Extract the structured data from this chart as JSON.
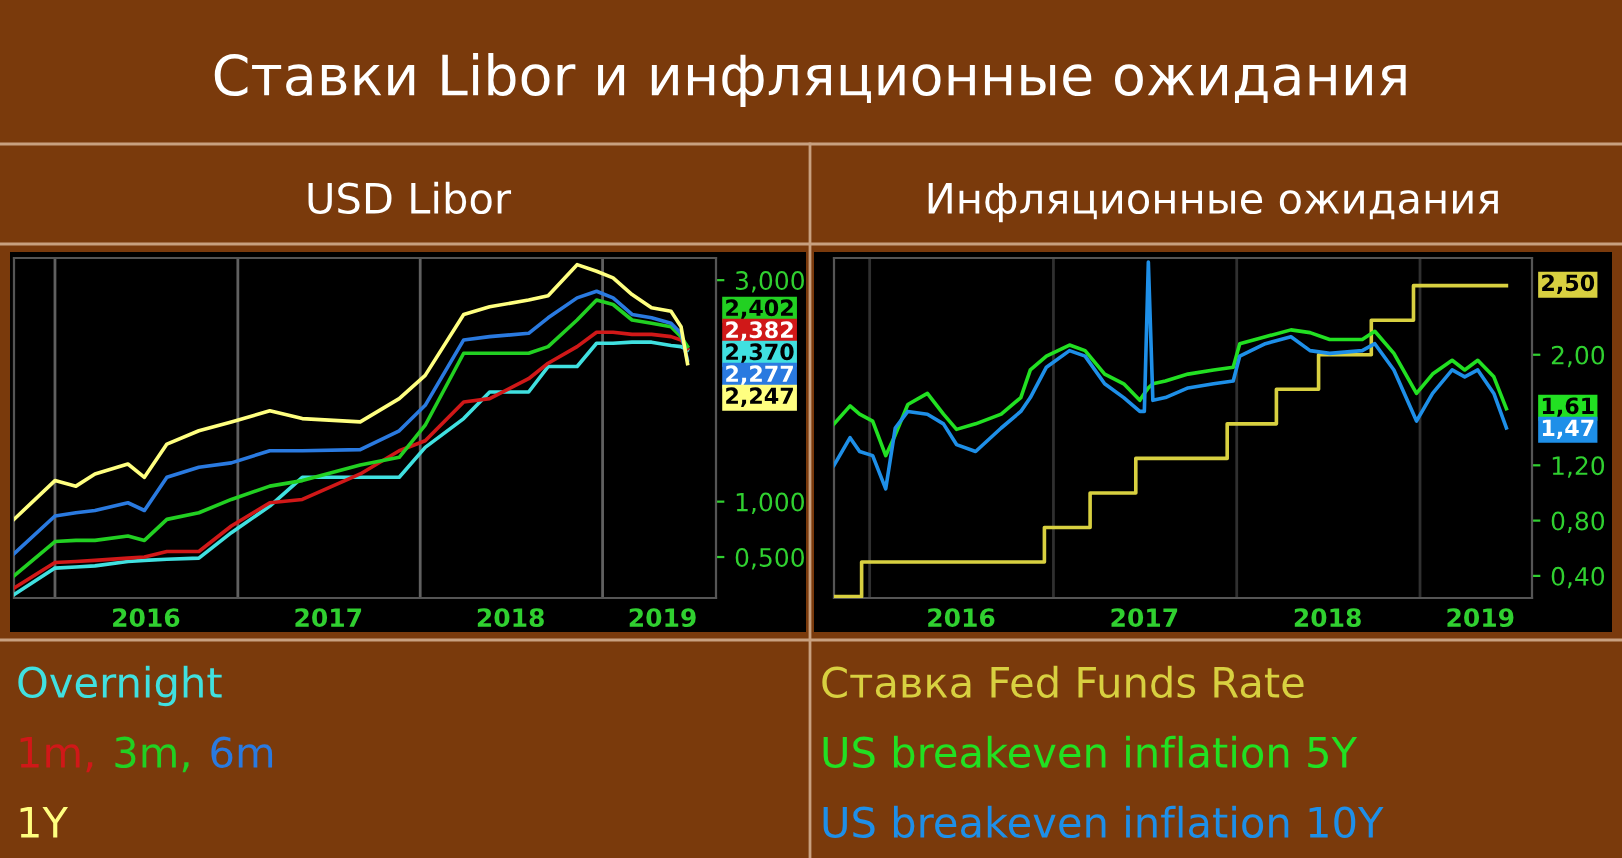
{
  "chart_data": [
    {
      "type": "line",
      "title": "Ставки Libor и инфляционные ожидания",
      "subtitle": "USD Libor",
      "x": [
        "2015-10-11",
        "2016-01-01",
        "2016-02-12",
        "2016-03-21",
        "2016-05-26",
        "2016-06-28",
        "2016-08-12",
        "2016-10-15",
        "2016-12-19",
        "2017-03-06",
        "2017-05-10",
        "2017-09-03",
        "2017-11-20",
        "2018-01-11",
        "2018-03-29",
        "2018-05-20",
        "2018-08-06",
        "2018-09-14",
        "2018-11-11",
        "2018-12-20",
        "2019-01-22",
        "2019-03-01",
        "2019-04-09",
        "2019-05-18",
        "2019-06-07",
        "2019-06-20"
      ],
      "series": [
        {
          "name": "Overnight",
          "color": "#40e0e0",
          "values": [
            0.16,
            0.4,
            0.41,
            0.42,
            0.46,
            0.47,
            0.48,
            0.49,
            0.72,
            0.96,
            1.22,
            1.22,
            1.22,
            1.49,
            1.75,
            1.99,
            1.99,
            2.22,
            2.22,
            2.43,
            2.43,
            2.44,
            2.44,
            2.41,
            2.4,
            2.37
          ],
          "value_labels": [
            null,
            null,
            null,
            null,
            null,
            null,
            null,
            null,
            null,
            null,
            null,
            null,
            null,
            null,
            null,
            null,
            null,
            null,
            null,
            null,
            null,
            null,
            null,
            null,
            null,
            "2,370"
          ]
        },
        {
          "name": "1m,",
          "color": "#d01818",
          "values": [
            0.22,
            0.45,
            0.46,
            0.47,
            0.49,
            0.5,
            0.55,
            0.55,
            0.78,
            0.99,
            1.02,
            1.25,
            1.46,
            1.55,
            1.9,
            1.93,
            2.11,
            2.25,
            2.4,
            2.53,
            2.53,
            2.51,
            2.51,
            2.49,
            2.46,
            2.382
          ],
          "value_labels": [
            null,
            null,
            null,
            null,
            null,
            null,
            null,
            null,
            null,
            null,
            null,
            null,
            null,
            null,
            null,
            null,
            null,
            null,
            null,
            null,
            null,
            null,
            null,
            null,
            null,
            "2,382"
          ]
        },
        {
          "name": "3m,",
          "color": "#22d022",
          "values": [
            0.33,
            0.64,
            0.65,
            0.65,
            0.69,
            0.65,
            0.84,
            0.9,
            1.02,
            1.14,
            1.19,
            1.33,
            1.4,
            1.69,
            2.34,
            2.34,
            2.34,
            2.4,
            2.64,
            2.82,
            2.78,
            2.64,
            2.61,
            2.58,
            2.49,
            2.402
          ],
          "value_labels": [
            null,
            null,
            null,
            null,
            null,
            null,
            null,
            null,
            null,
            null,
            null,
            null,
            null,
            null,
            null,
            null,
            null,
            null,
            null,
            null,
            null,
            null,
            null,
            null,
            null,
            "2,402"
          ]
        },
        {
          "name": "6m",
          "color": "#2a7ae0",
          "values": [
            0.53,
            0.87,
            0.9,
            0.92,
            0.99,
            0.92,
            1.22,
            1.31,
            1.35,
            1.46,
            1.46,
            1.47,
            1.64,
            1.87,
            2.46,
            2.49,
            2.52,
            2.66,
            2.84,
            2.9,
            2.84,
            2.69,
            2.66,
            2.61,
            2.52,
            2.277
          ],
          "value_labels": [
            null,
            null,
            null,
            null,
            null,
            null,
            null,
            null,
            null,
            null,
            null,
            null,
            null,
            null,
            null,
            null,
            null,
            null,
            null,
            null,
            null,
            null,
            null,
            null,
            null,
            "2,277"
          ]
        },
        {
          "name": "1Y",
          "color": "#ffff80",
          "values": [
            0.84,
            1.19,
            1.14,
            1.25,
            1.34,
            1.22,
            1.52,
            1.64,
            1.72,
            1.82,
            1.75,
            1.72,
            1.93,
            2.14,
            2.69,
            2.76,
            2.82,
            2.86,
            3.14,
            3.08,
            3.02,
            2.87,
            2.75,
            2.72,
            2.58,
            2.247
          ],
          "value_labels": [
            null,
            null,
            null,
            null,
            null,
            null,
            null,
            null,
            null,
            null,
            null,
            null,
            null,
            null,
            null,
            null,
            null,
            null,
            null,
            null,
            null,
            null,
            null,
            null,
            null,
            "2,247"
          ]
        }
      ],
      "xlim": [
        "2015-10-11",
        "2019-08-16"
      ],
      "xticks": [
        {
          "value": "2016-07-01",
          "label": "2016"
        },
        {
          "value": "2017-07-01",
          "label": "2017"
        },
        {
          "value": "2018-07-01",
          "label": "2018"
        },
        {
          "value": "2019-05-01",
          "label": "2019"
        }
      ],
      "ylim": [
        0.13,
        3.2
      ],
      "yticks": [
        {
          "value": 0.5,
          "label": "0,500"
        },
        {
          "value": 1.0,
          "label": "1,000"
        },
        {
          "value": 3.0,
          "label": "3,000"
        }
      ],
      "ref_lines": [
        {
          "axis": "x",
          "value": "2016-01-01",
          "color": "#606060"
        },
        {
          "axis": "x",
          "value": "2017-01-01",
          "color": "#606060"
        },
        {
          "axis": "x",
          "value": "2018-01-01",
          "color": "#606060"
        },
        {
          "axis": "x",
          "value": "2019-01-01",
          "color": "#606060"
        }
      ],
      "legend": "bottom"
    },
    {
      "type": "line",
      "subtitle": "Инфляционные ожидания",
      "x": [
        "2015-10-22",
        "2015-11-23",
        "2015-12-12",
        "2016-01-07",
        "2016-02-02",
        "2016-02-21",
        "2016-03-17",
        "2016-04-25",
        "2016-05-27",
        "2016-06-22",
        "2016-07-30",
        "2016-09-19",
        "2016-10-28",
        "2016-11-16",
        "2016-12-18",
        "2017-02-02",
        "2017-03-05",
        "2017-04-13",
        "2017-05-21",
        "2017-06-22",
        "2017-07-01",
        "2017-07-09",
        "2017-07-18",
        "2017-08-12",
        "2017-09-26",
        "2017-11-16",
        "2017-12-25",
        "2018-01-07",
        "2018-02-27",
        "2018-04-19",
        "2018-05-27",
        "2018-07-05",
        "2018-09-08",
        "2018-10-03",
        "2018-11-10",
        "2018-12-25",
        "2019-01-26",
        "2019-03-06",
        "2019-03-31",
        "2019-04-26",
        "2019-05-28",
        "2019-06-22"
      ],
      "series": [
        {
          "name": "Ставка Fed Funds Rate",
          "type": "step",
          "color": "#d8d040",
          "x": [
            "2015-10-22",
            "2015-12-16",
            "2016-12-14",
            "2017-03-15",
            "2017-06-14",
            "2017-12-13",
            "2018-03-21",
            "2018-06-13",
            "2018-09-26",
            "2018-12-19",
            "2019-06-22"
          ],
          "values": [
            0.25,
            0.5,
            0.75,
            1.0,
            1.25,
            1.5,
            1.75,
            2.0,
            2.25,
            2.5,
            2.5
          ],
          "value_labels": [
            null,
            null,
            null,
            null,
            null,
            null,
            null,
            null,
            null,
            null,
            "2,50"
          ]
        },
        {
          "name": "US breakeven inflation 5Y",
          "color": "#22e022",
          "values": [
            1.5,
            1.63,
            1.57,
            1.52,
            1.27,
            1.42,
            1.64,
            1.72,
            1.57,
            1.46,
            1.5,
            1.57,
            1.69,
            1.89,
            1.99,
            2.07,
            2.03,
            1.86,
            1.79,
            1.67,
            1.72,
            1.76,
            1.79,
            1.81,
            1.86,
            1.89,
            1.91,
            2.08,
            2.13,
            2.18,
            2.16,
            2.11,
            2.11,
            2.17,
            2.01,
            1.72,
            1.86,
            1.96,
            1.89,
            1.96,
            1.84,
            1.61
          ],
          "value_labels": [
            null,
            null,
            null,
            null,
            null,
            null,
            null,
            null,
            null,
            null,
            null,
            null,
            null,
            null,
            null,
            null,
            null,
            null,
            null,
            null,
            null,
            null,
            null,
            null,
            null,
            null,
            null,
            null,
            null,
            null,
            null,
            null,
            null,
            null,
            null,
            null,
            null,
            null,
            null,
            null,
            null,
            "1,61"
          ]
        },
        {
          "name": "US breakeven inflation 10Y",
          "color": "#1e8fe8",
          "values": [
            1.2,
            1.4,
            1.3,
            1.27,
            1.03,
            1.47,
            1.59,
            1.57,
            1.5,
            1.35,
            1.3,
            1.47,
            1.59,
            1.69,
            1.91,
            2.03,
            1.99,
            1.79,
            1.69,
            1.59,
            1.59,
            2.67,
            1.67,
            1.69,
            1.76,
            1.79,
            1.81,
            1.99,
            2.08,
            2.13,
            2.03,
            2.01,
            2.03,
            2.08,
            1.89,
            1.52,
            1.72,
            1.89,
            1.84,
            1.89,
            1.72,
            1.47
          ],
          "value_labels": [
            null,
            null,
            null,
            null,
            null,
            null,
            null,
            null,
            null,
            null,
            null,
            null,
            null,
            null,
            null,
            null,
            null,
            null,
            null,
            null,
            null,
            null,
            null,
            null,
            null,
            null,
            null,
            null,
            null,
            null,
            null,
            null,
            null,
            null,
            null,
            null,
            null,
            null,
            null,
            null,
            null,
            "1,47"
          ]
        }
      ],
      "xlim": [
        "2015-10-22",
        "2019-08-12"
      ],
      "xticks": [
        {
          "value": "2016-07-01",
          "label": "2016"
        },
        {
          "value": "2017-07-01",
          "label": "2017"
        },
        {
          "value": "2018-07-01",
          "label": "2018"
        },
        {
          "value": "2019-05-01",
          "label": "2019"
        }
      ],
      "ylim": [
        0.24,
        2.7
      ],
      "yticks": [
        {
          "value": 0.4,
          "label": "0,40"
        },
        {
          "value": 0.8,
          "label": "0,80"
        },
        {
          "value": 1.2,
          "label": "1,20"
        },
        {
          "value": 2.0,
          "label": "2,00"
        }
      ],
      "ref_lines": [
        {
          "axis": "x",
          "value": "2016-01-01",
          "color": "#303030"
        },
        {
          "axis": "x",
          "value": "2017-01-01",
          "color": "#303030"
        },
        {
          "axis": "x",
          "value": "2018-01-01",
          "color": "#303030"
        },
        {
          "axis": "x",
          "value": "2019-01-01",
          "color": "#303030"
        }
      ],
      "legend": "bottom"
    }
  ]
}
